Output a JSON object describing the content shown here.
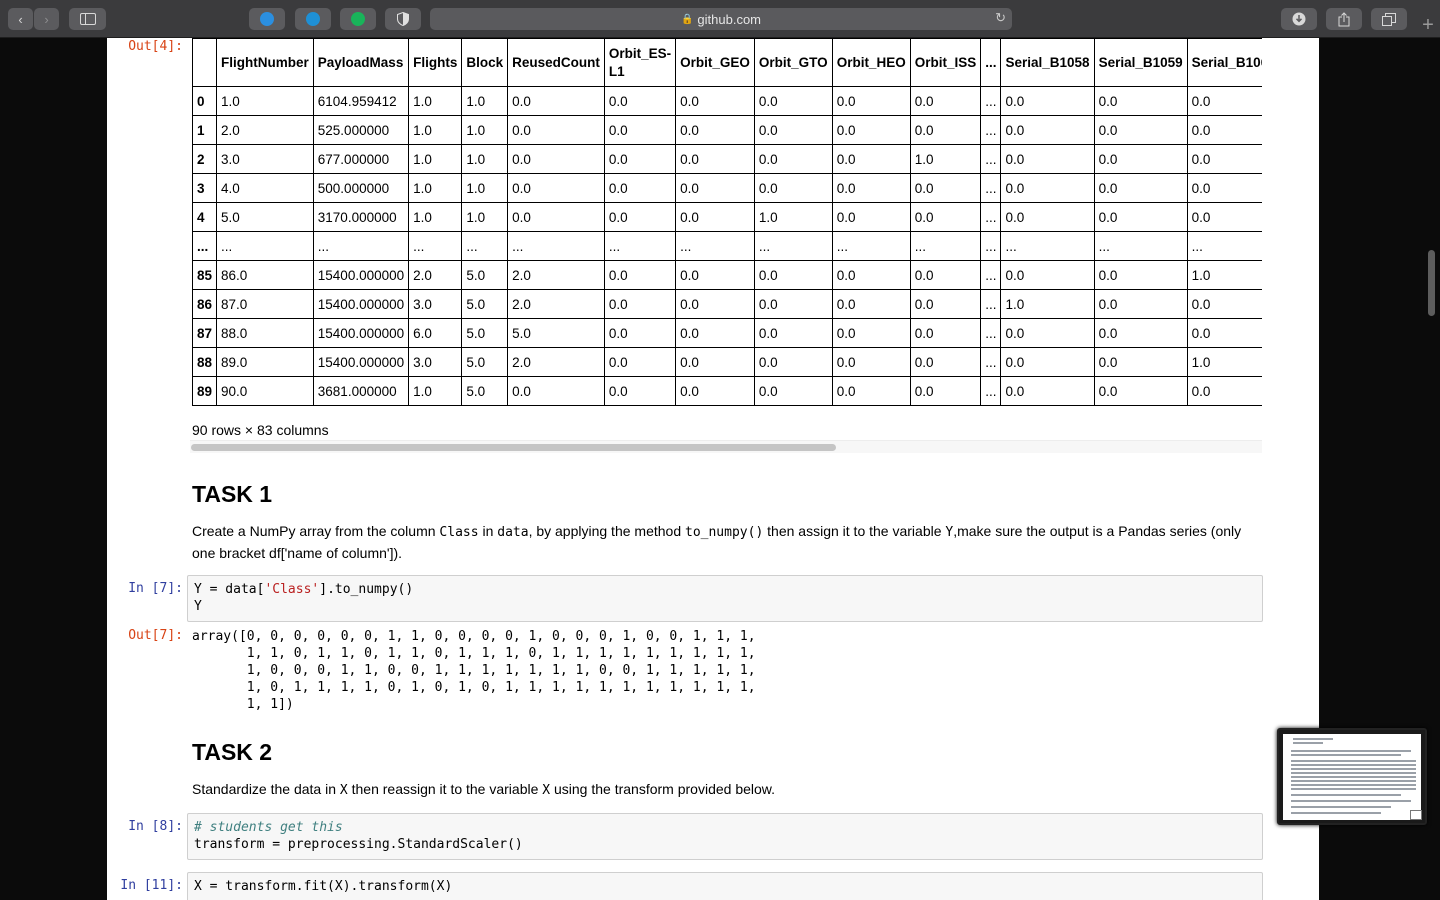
{
  "browser": {
    "url": "github.com",
    "back_glyph": "‹",
    "forward_glyph": "›",
    "reload_glyph": "↻",
    "new_tab_glyph": "+",
    "extensions": [
      {
        "name": "extension-a-icon",
        "color": "#2b8fe0"
      },
      {
        "name": "extension-b-icon",
        "color": "#1e90d6"
      },
      {
        "name": "extension-c-icon",
        "color": "#19b45a"
      },
      {
        "name": "privacy-shield-icon",
        "color": "#e0e0e0"
      }
    ]
  },
  "cell4": {
    "prompt": "Out[4]:",
    "columns": [
      "",
      "FlightNumber",
      "PayloadMass",
      "Flights",
      "Block",
      "ReusedCount",
      "Orbit_ES-L1",
      "Orbit_GEO",
      "Orbit_GTO",
      "Orbit_HEO",
      "Orbit_ISS",
      "...",
      "Serial_B1058",
      "Serial_B1059",
      "Serial_B1060"
    ],
    "rows": [
      [
        "0",
        "1.0",
        "6104.959412",
        "1.0",
        "1.0",
        "0.0",
        "0.0",
        "0.0",
        "0.0",
        "0.0",
        "0.0",
        "...",
        "0.0",
        "0.0",
        "0.0"
      ],
      [
        "1",
        "2.0",
        "525.000000",
        "1.0",
        "1.0",
        "0.0",
        "0.0",
        "0.0",
        "0.0",
        "0.0",
        "0.0",
        "...",
        "0.0",
        "0.0",
        "0.0"
      ],
      [
        "2",
        "3.0",
        "677.000000",
        "1.0",
        "1.0",
        "0.0",
        "0.0",
        "0.0",
        "0.0",
        "0.0",
        "1.0",
        "...",
        "0.0",
        "0.0",
        "0.0"
      ],
      [
        "3",
        "4.0",
        "500.000000",
        "1.0",
        "1.0",
        "0.0",
        "0.0",
        "0.0",
        "0.0",
        "0.0",
        "0.0",
        "...",
        "0.0",
        "0.0",
        "0.0"
      ],
      [
        "4",
        "5.0",
        "3170.000000",
        "1.0",
        "1.0",
        "0.0",
        "0.0",
        "0.0",
        "1.0",
        "0.0",
        "0.0",
        "...",
        "0.0",
        "0.0",
        "0.0"
      ],
      [
        "...",
        "...",
        "...",
        "...",
        "...",
        "...",
        "...",
        "...",
        "...",
        "...",
        "...",
        "...",
        "...",
        "...",
        "..."
      ],
      [
        "85",
        "86.0",
        "15400.000000",
        "2.0",
        "5.0",
        "2.0",
        "0.0",
        "0.0",
        "0.0",
        "0.0",
        "0.0",
        "...",
        "0.0",
        "0.0",
        "1.0"
      ],
      [
        "86",
        "87.0",
        "15400.000000",
        "3.0",
        "5.0",
        "2.0",
        "0.0",
        "0.0",
        "0.0",
        "0.0",
        "0.0",
        "...",
        "1.0",
        "0.0",
        "0.0"
      ],
      [
        "87",
        "88.0",
        "15400.000000",
        "6.0",
        "5.0",
        "5.0",
        "0.0",
        "0.0",
        "0.0",
        "0.0",
        "0.0",
        "...",
        "0.0",
        "0.0",
        "0.0"
      ],
      [
        "88",
        "89.0",
        "15400.000000",
        "3.0",
        "5.0",
        "2.0",
        "0.0",
        "0.0",
        "0.0",
        "0.0",
        "0.0",
        "...",
        "0.0",
        "0.0",
        "1.0"
      ],
      [
        "89",
        "90.0",
        "3681.000000",
        "1.0",
        "5.0",
        "0.0",
        "0.0",
        "0.0",
        "0.0",
        "0.0",
        "0.0",
        "...",
        "0.0",
        "0.0",
        "0.0"
      ]
    ],
    "summary": "90 rows × 83 columns"
  },
  "task1": {
    "title": "TASK 1",
    "text_parts": [
      "Create a NumPy array from the column ",
      "Class",
      " in ",
      "data",
      ", by applying the method ",
      "to_numpy()",
      " then assign it to the variable ",
      "Y",
      ",make sure the output is a Pandas series (only one bracket df['name of column'])."
    ]
  },
  "cell7": {
    "in_prompt": "In [7]:",
    "code_line1_a": "Y = data[",
    "code_line1_str": "'Class'",
    "code_line1_b": "].to_numpy()",
    "code_line2": "Y",
    "out_prompt": "Out[7]:",
    "output": "array([0, 0, 0, 0, 0, 0, 1, 1, 0, 0, 0, 0, 1, 0, 0, 0, 1, 0, 0, 1, 1, 1,\n       1, 1, 0, 1, 1, 0, 1, 1, 0, 1, 1, 1, 0, 1, 1, 1, 1, 1, 1, 1, 1, 1,\n       1, 0, 0, 0, 1, 1, 0, 0, 1, 1, 1, 1, 1, 1, 1, 0, 0, 1, 1, 1, 1, 1,\n       1, 0, 1, 1, 1, 1, 0, 1, 0, 1, 0, 1, 1, 1, 1, 1, 1, 1, 1, 1, 1, 1,\n       1, 1])"
  },
  "task2": {
    "title": "TASK 2",
    "text_parts": [
      "Standardize the data in ",
      "X",
      " then reassign it to the variable ",
      "X",
      " using the transform provided below."
    ]
  },
  "cell8": {
    "in_prompt": "In [8]:",
    "comment": "# students get this",
    "code": "transform = preprocessing.StandardScaler()"
  },
  "cell11": {
    "in_prompt": "In [11]:",
    "code": "X = transform.fit(X).transform(X)"
  }
}
